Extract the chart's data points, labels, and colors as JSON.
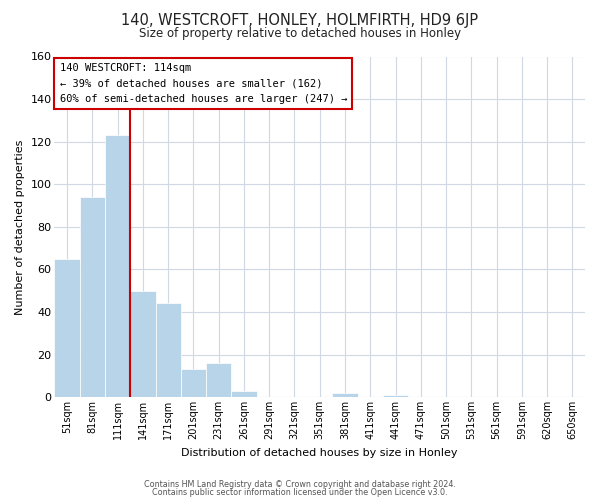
{
  "title": "140, WESTCROFT, HONLEY, HOLMFIRTH, HD9 6JP",
  "subtitle": "Size of property relative to detached houses in Honley",
  "xlabel": "Distribution of detached houses by size in Honley",
  "ylabel": "Number of detached properties",
  "footer_line1": "Contains HM Land Registry data © Crown copyright and database right 2024.",
  "footer_line2": "Contains public sector information licensed under the Open Licence v3.0.",
  "bin_labels": [
    "51sqm",
    "81sqm",
    "111sqm",
    "141sqm",
    "171sqm",
    "201sqm",
    "231sqm",
    "261sqm",
    "291sqm",
    "321sqm",
    "351sqm",
    "381sqm",
    "411sqm",
    "441sqm",
    "471sqm",
    "501sqm",
    "531sqm",
    "561sqm",
    "591sqm",
    "620sqm",
    "650sqm"
  ],
  "bar_values": [
    65,
    94,
    123,
    50,
    44,
    13,
    16,
    3,
    0,
    0,
    0,
    2,
    0,
    1,
    0,
    0,
    0,
    0,
    0,
    0,
    0
  ],
  "bar_color": "#b8d4e8",
  "bar_edge_color": "#ffffff",
  "highlight_bin_index": 2,
  "highlight_color": "#cc0000",
  "annotation_title": "140 WESTCROFT: 114sqm",
  "annotation_line1": "← 39% of detached houses are smaller (162)",
  "annotation_line2": "60% of semi-detached houses are larger (247) →",
  "annotation_box_color": "#ffffff",
  "annotation_box_edge": "#cc0000",
  "ylim": [
    0,
    160
  ],
  "yticks": [
    0,
    20,
    40,
    60,
    80,
    100,
    120,
    140,
    160
  ],
  "background_color": "#ffffff",
  "grid_color": "#d0d8e4"
}
